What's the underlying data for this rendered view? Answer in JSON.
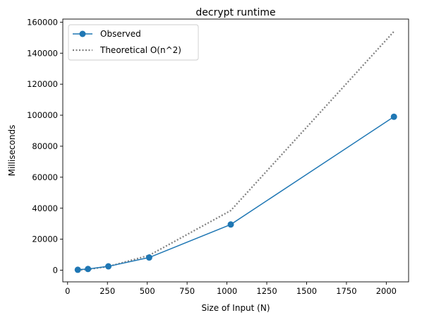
{
  "chart_data": {
    "type": "line",
    "title": "decrypt runtime",
    "xlabel": "Size of Input (N)",
    "ylabel": "Milliseconds",
    "xlim": [
      -30,
      2140
    ],
    "ylim": [
      -7500,
      162000
    ],
    "xticks": [
      0,
      250,
      500,
      750,
      1000,
      1250,
      1500,
      1750,
      2000
    ],
    "yticks": [
      0,
      20000,
      40000,
      60000,
      80000,
      100000,
      120000,
      140000,
      160000
    ],
    "grid": false,
    "legend_position": "upper-left",
    "series": [
      {
        "name": "Observed",
        "style": "solid-marker",
        "color": "#1f77b4",
        "x": [
          64,
          128,
          256,
          512,
          1024,
          2048
        ],
        "y": [
          300,
          800,
          2500,
          8200,
          29500,
          99000
        ]
      },
      {
        "name": "Theoretical O(n^2)",
        "style": "dotted",
        "color": "#808080",
        "x": [
          64,
          128,
          256,
          512,
          1024,
          2048
        ],
        "y": [
          150,
          600,
          2400,
          9600,
          38500,
          154000
        ]
      }
    ]
  }
}
